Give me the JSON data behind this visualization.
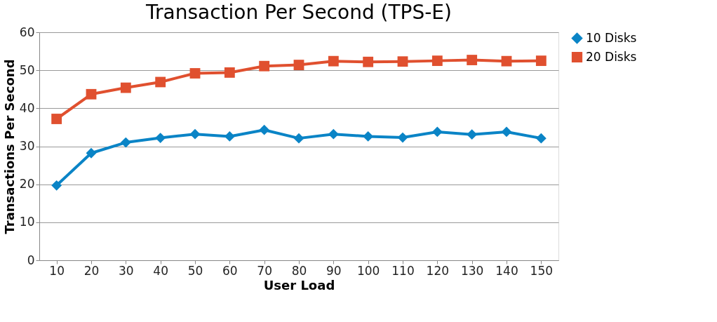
{
  "chart_data": {
    "type": "line",
    "title": "Transaction Per Second (TPS-E)",
    "xlabel": "User Load",
    "ylabel": "Transactions Per Second",
    "categories": [
      "10",
      "20",
      "30",
      "40",
      "50",
      "60",
      "70",
      "80",
      "90",
      "100",
      "110",
      "120",
      "130",
      "140",
      "150"
    ],
    "series": [
      {
        "name": "10 Disks",
        "color": "#0a84c6",
        "marker": "diamond",
        "values": [
          19.7,
          28.2,
          31.0,
          32.2,
          33.2,
          32.6,
          34.3,
          32.1,
          33.2,
          32.6,
          32.3,
          33.8,
          33.1,
          33.8,
          32.1
        ]
      },
      {
        "name": "20 Disks",
        "color": "#e0502f",
        "marker": "square",
        "values": [
          37.2,
          43.7,
          45.4,
          46.9,
          49.2,
          49.4,
          51.1,
          51.4,
          52.4,
          52.2,
          52.3,
          52.5,
          52.7,
          52.4,
          52.5
        ]
      }
    ],
    "ylim": [
      0,
      60
    ],
    "yticks": [
      0,
      10,
      20,
      30,
      40,
      50,
      60
    ],
    "grid": "y",
    "legend": "right",
    "line_style": "solid"
  }
}
